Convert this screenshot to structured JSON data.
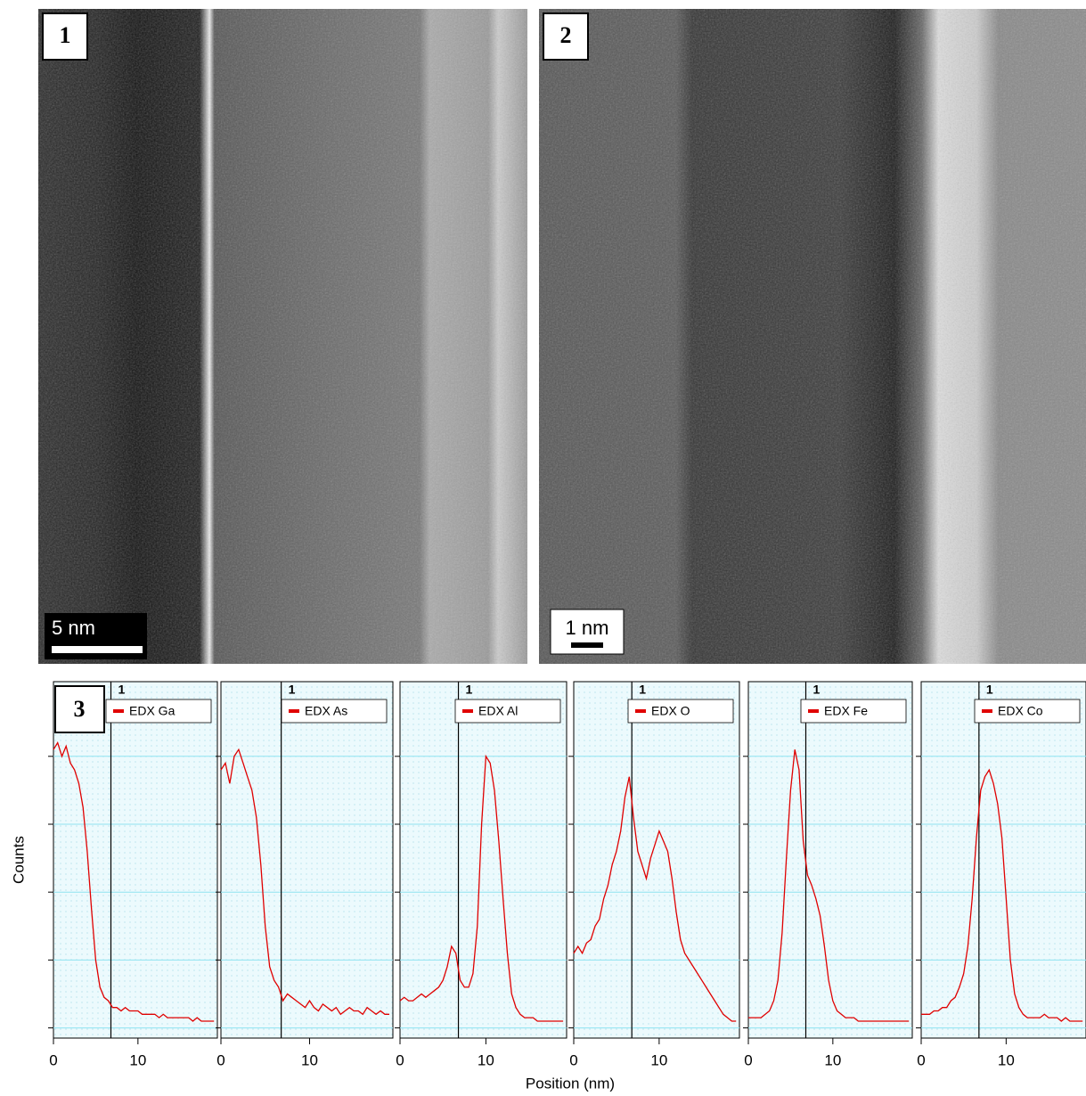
{
  "panels": [
    {
      "label": "1",
      "scale_bar": "5 nm"
    },
    {
      "label": "2",
      "scale_bar": "1 nm"
    },
    {
      "label": "3"
    }
  ],
  "axes": {
    "ylabel": "Counts",
    "xlabel": "Position (nm)"
  },
  "chart_data": [
    {
      "type": "line",
      "xlim": [
        0,
        19.4
      ],
      "ylim": [
        -3,
        102
      ],
      "xticks": [
        0,
        10
      ],
      "yticks": [
        0,
        20,
        40,
        60,
        80
      ],
      "grid": true,
      "marker": {
        "x": 6.8,
        "label": "1"
      },
      "x": [
        0,
        0.5,
        1,
        1.5,
        2,
        2.5,
        3,
        3.5,
        4,
        4.5,
        5,
        5.5,
        6,
        6.5,
        7,
        7.5,
        8,
        8.5,
        9,
        9.5,
        10,
        10.5,
        11,
        11.5,
        12,
        12.5,
        13,
        13.5,
        14,
        14.5,
        15,
        15.5,
        16,
        16.5,
        17,
        17.5,
        18,
        18.5,
        19
      ],
      "series": [
        {
          "name": "EDX Ga",
          "color": "#e00000",
          "values": [
            82,
            84,
            80,
            83,
            78,
            76,
            72,
            65,
            52,
            35,
            20,
            12,
            9,
            8,
            6,
            6,
            5,
            6,
            5,
            5,
            5,
            4,
            4,
            4,
            4,
            3,
            4,
            3,
            3,
            3,
            3,
            3,
            3,
            2,
            3,
            2,
            2,
            2,
            2
          ]
        }
      ]
    },
    {
      "type": "line",
      "xlim": [
        0,
        19.4
      ],
      "ylim": [
        -3,
        102
      ],
      "xticks": [
        0,
        10
      ],
      "yticks": [
        0,
        20,
        40,
        60,
        80
      ],
      "grid": true,
      "marker": {
        "x": 6.8,
        "label": "1"
      },
      "x": [
        0,
        0.5,
        1,
        1.5,
        2,
        2.5,
        3,
        3.5,
        4,
        4.5,
        5,
        5.5,
        6,
        6.5,
        7,
        7.5,
        8,
        8.5,
        9,
        9.5,
        10,
        10.5,
        11,
        11.5,
        12,
        12.5,
        13,
        13.5,
        14,
        14.5,
        15,
        15.5,
        16,
        16.5,
        17,
        17.5,
        18,
        18.5,
        19
      ],
      "series": [
        {
          "name": "EDX As",
          "color": "#e00000",
          "values": [
            76,
            78,
            72,
            80,
            82,
            78,
            74,
            70,
            62,
            48,
            30,
            18,
            14,
            12,
            8,
            10,
            9,
            8,
            7,
            6,
            8,
            6,
            5,
            7,
            6,
            5,
            6,
            4,
            5,
            6,
            5,
            5,
            4,
            6,
            5,
            4,
            5,
            4,
            4
          ]
        }
      ]
    },
    {
      "type": "line",
      "xlim": [
        0,
        19.4
      ],
      "ylim": [
        -3,
        102
      ],
      "xticks": [
        0,
        10
      ],
      "yticks": [
        0,
        20,
        40,
        60,
        80
      ],
      "grid": true,
      "marker": {
        "x": 6.8,
        "label": "1"
      },
      "x": [
        0,
        0.5,
        1,
        1.5,
        2,
        2.5,
        3,
        3.5,
        4,
        4.5,
        5,
        5.5,
        6,
        6.5,
        7,
        7.5,
        8,
        8.5,
        9,
        9.5,
        10,
        10.5,
        11,
        11.5,
        12,
        12.5,
        13,
        13.5,
        14,
        14.5,
        15,
        15.5,
        16,
        16.5,
        17,
        17.5,
        18,
        18.5,
        19
      ],
      "series": [
        {
          "name": "EDX Al",
          "color": "#e00000",
          "values": [
            8,
            9,
            8,
            8,
            9,
            10,
            9,
            10,
            11,
            12,
            14,
            18,
            24,
            22,
            14,
            12,
            12,
            16,
            30,
            60,
            80,
            78,
            70,
            55,
            38,
            22,
            10,
            6,
            4,
            3,
            3,
            3,
            2,
            2,
            2,
            2,
            2,
            2,
            2
          ]
        }
      ]
    },
    {
      "type": "line",
      "xlim": [
        0,
        19.4
      ],
      "ylim": [
        -3,
        102
      ],
      "xticks": [
        0,
        10
      ],
      "yticks": [
        0,
        20,
        40,
        60,
        80
      ],
      "grid": true,
      "marker": {
        "x": 6.8,
        "label": "1"
      },
      "x": [
        0,
        0.5,
        1,
        1.5,
        2,
        2.5,
        3,
        3.5,
        4,
        4.5,
        5,
        5.5,
        6,
        6.5,
        7,
        7.5,
        8,
        8.5,
        9,
        9.5,
        10,
        10.5,
        11,
        11.5,
        12,
        12.5,
        13,
        13.5,
        14,
        14.5,
        15,
        15.5,
        16,
        16.5,
        17,
        17.5,
        18,
        18.5,
        19
      ],
      "series": [
        {
          "name": "EDX O",
          "color": "#e00000",
          "values": [
            22,
            24,
            22,
            25,
            26,
            30,
            32,
            38,
            42,
            48,
            52,
            58,
            68,
            74,
            62,
            52,
            48,
            44,
            50,
            54,
            58,
            55,
            52,
            44,
            34,
            26,
            22,
            20,
            18,
            16,
            14,
            12,
            10,
            8,
            6,
            4,
            3,
            2,
            2
          ]
        }
      ]
    },
    {
      "type": "line",
      "xlim": [
        0,
        19.4
      ],
      "ylim": [
        -3,
        102
      ],
      "xticks": [
        0,
        10
      ],
      "yticks": [
        0,
        20,
        40,
        60,
        80
      ],
      "grid": true,
      "marker": {
        "x": 6.8,
        "label": "1"
      },
      "x": [
        0,
        0.5,
        1,
        1.5,
        2,
        2.5,
        3,
        3.5,
        4,
        4.5,
        5,
        5.5,
        6,
        6.5,
        7,
        7.5,
        8,
        8.5,
        9,
        9.5,
        10,
        10.5,
        11,
        11.5,
        12,
        12.5,
        13,
        13.5,
        14,
        14.5,
        15,
        15.5,
        16,
        16.5,
        17,
        17.5,
        18,
        18.5,
        19
      ],
      "series": [
        {
          "name": "EDX Fe",
          "color": "#e00000",
          "values": [
            3,
            3,
            3,
            3,
            4,
            5,
            8,
            14,
            28,
            50,
            70,
            82,
            76,
            55,
            45,
            42,
            38,
            33,
            24,
            14,
            8,
            5,
            4,
            3,
            3,
            3,
            2,
            2,
            2,
            2,
            2,
            2,
            2,
            2,
            2,
            2,
            2,
            2,
            2
          ]
        }
      ]
    },
    {
      "type": "line",
      "xlim": [
        0,
        19.4
      ],
      "ylim": [
        -3,
        102
      ],
      "xticks": [
        0,
        10
      ],
      "yticks": [
        0,
        20,
        40,
        60,
        80
      ],
      "grid": true,
      "marker": {
        "x": 6.8,
        "label": "1"
      },
      "x": [
        0,
        0.5,
        1,
        1.5,
        2,
        2.5,
        3,
        3.5,
        4,
        4.5,
        5,
        5.5,
        6,
        6.5,
        7,
        7.5,
        8,
        8.5,
        9,
        9.5,
        10,
        10.5,
        11,
        11.5,
        12,
        12.5,
        13,
        13.5,
        14,
        14.5,
        15,
        15.5,
        16,
        16.5,
        17,
        17.5,
        18,
        18.5,
        19
      ],
      "series": [
        {
          "name": "EDX Co",
          "color": "#e00000",
          "values": [
            4,
            4,
            4,
            5,
            5,
            6,
            6,
            8,
            9,
            12,
            16,
            24,
            38,
            56,
            70,
            74,
            76,
            72,
            66,
            56,
            38,
            20,
            10,
            6,
            4,
            3,
            3,
            3,
            3,
            4,
            3,
            3,
            3,
            2,
            3,
            2,
            2,
            2,
            2
          ]
        }
      ]
    }
  ]
}
